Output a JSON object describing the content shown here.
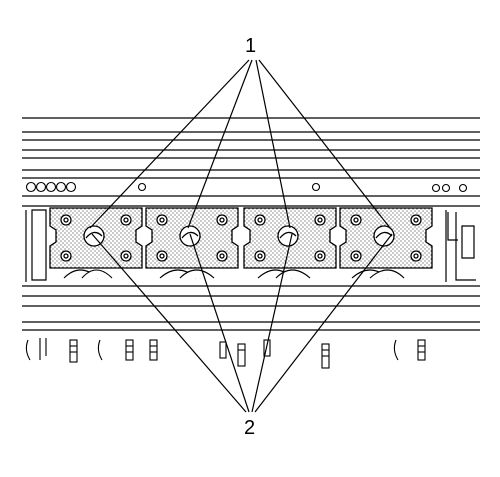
{
  "callouts": [
    {
      "id": "1",
      "label": "1"
    },
    {
      "id": "2",
      "label": "2"
    }
  ],
  "parts": {
    "count": 4,
    "items": [
      "cap-1",
      "cap-2",
      "cap-3",
      "cap-4"
    ]
  },
  "colors": {
    "line": "#000000",
    "fill": "#ffffff",
    "stipple": "#000000"
  }
}
